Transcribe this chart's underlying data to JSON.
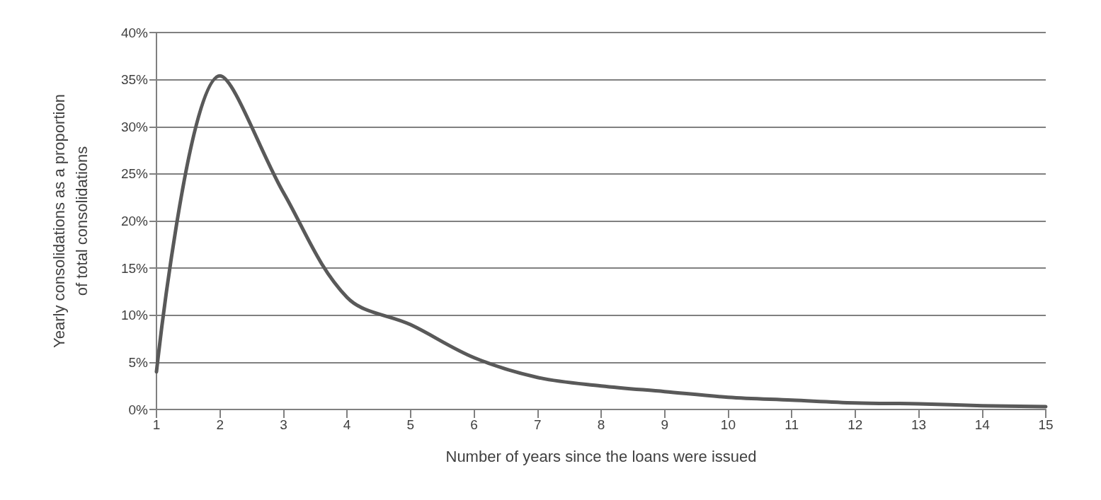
{
  "chart_data": {
    "type": "line",
    "xlabel": "Number of years since the loans were issued",
    "ylabel": "Yearly consolidations as a proportion\nof total consolidations",
    "x": [
      1,
      2,
      3,
      4,
      5,
      6,
      7,
      8,
      9,
      10,
      11,
      12,
      13,
      14,
      15
    ],
    "series": [
      {
        "color": "#595959",
        "values": [
          4,
          35.4,
          23,
          11.9,
          9,
          5.5,
          3.4,
          2.5,
          1.9,
          1.3,
          1,
          0.7,
          0.6,
          0.4,
          0.3
        ]
      }
    ],
    "xlim": [
      1,
      15
    ],
    "xticks": [
      1,
      2,
      3,
      4,
      5,
      6,
      7,
      8,
      9,
      10,
      11,
      12,
      13,
      14,
      15
    ],
    "ylim": [
      0,
      40
    ],
    "yticks": [
      {
        "value": 0,
        "label": "0%"
      },
      {
        "value": 5,
        "label": "5%"
      },
      {
        "value": 10,
        "label": "10%"
      },
      {
        "value": 15,
        "label": "15%"
      },
      {
        "value": 20,
        "label": "20%"
      },
      {
        "value": 25,
        "label": "25%"
      },
      {
        "value": 30,
        "label": "30%"
      },
      {
        "value": 35,
        "label": "35%"
      },
      {
        "value": 40,
        "label": "40%"
      }
    ],
    "grid": "y",
    "marker": "none",
    "line_style": "solid"
  }
}
